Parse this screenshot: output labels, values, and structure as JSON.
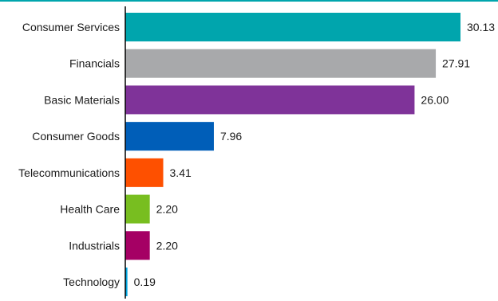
{
  "chart_data": {
    "type": "bar",
    "orientation": "horizontal",
    "categories": [
      "Consumer Services",
      "Financials",
      "Basic Materials",
      "Consumer Goods",
      "Telecommunications",
      "Health Care",
      "Industrials",
      "Technology"
    ],
    "values": [
      30.13,
      27.91,
      26.0,
      7.96,
      3.41,
      2.2,
      2.2,
      0.19
    ],
    "value_labels": [
      "30.13",
      "27.91",
      "26.00",
      "7.96",
      "3.41",
      "2.20",
      "2.20",
      "0.19"
    ],
    "colors": [
      "#00a5ad",
      "#a8a9ab",
      "#7f3399",
      "#005eb8",
      "#fe5000",
      "#78be20",
      "#a50064",
      "#00a5df"
    ],
    "top_rule_color": "#00a5ad",
    "xlim": [
      0,
      31
    ],
    "grid": false,
    "legend": "none",
    "title": "",
    "xlabel": "",
    "ylabel": ""
  }
}
